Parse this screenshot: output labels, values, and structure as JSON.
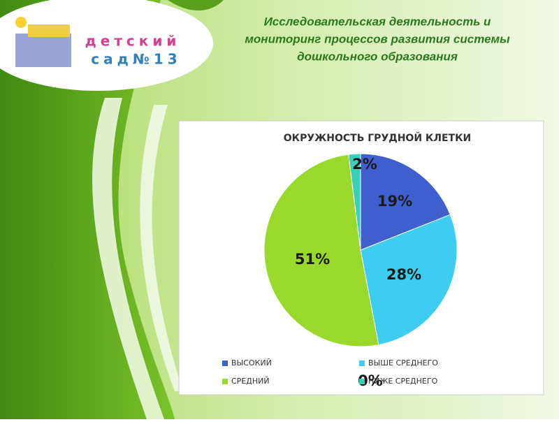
{
  "slide": {
    "title_lines": [
      "Исследовательская деятельность и",
      "мониторинг процессов развития системы",
      "дошкольного образования"
    ],
    "logo_lines": [
      "детский",
      "сад№13"
    ]
  },
  "chart_data": {
    "type": "pie",
    "title": "ОКРУЖНОСТЬ ГРУДНОЙ КЛЕТКИ",
    "categories": [
      "ВЫСОКИЙ",
      "ВЫШЕ СРЕДНЕГО",
      "СРЕДНИЙ",
      "НИЖЕ СРЕДНЕГО",
      null
    ],
    "values": [
      19,
      28,
      51,
      2,
      0
    ],
    "value_labels": [
      "19%",
      "28%",
      "51%",
      "2%",
      "0%"
    ],
    "colors": [
      "#3f5fcf",
      "#3dcdf0",
      "#9ad82c",
      "#3ccfb8",
      "#c8a040"
    ],
    "legend": "bottom"
  }
}
